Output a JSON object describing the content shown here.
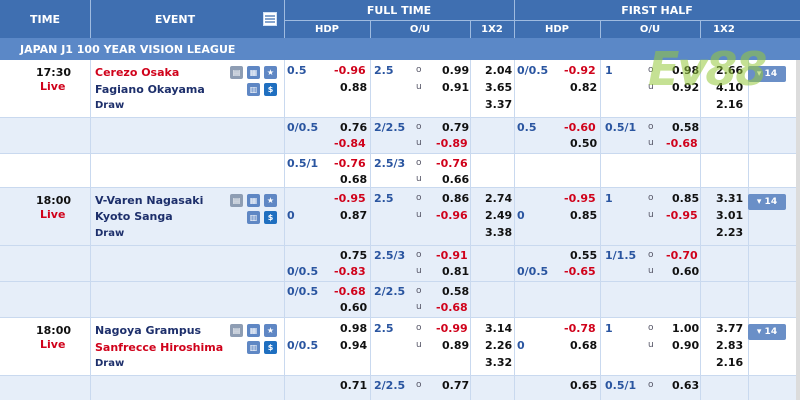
{
  "header": {
    "time": "TIME",
    "event": "EVENT",
    "full_time": "FULL TIME",
    "first_half": "FIRST HALF",
    "hdp": "HDP",
    "ou": "O/U",
    "x12": "1X2"
  },
  "league": "JAPAN J1 100 YEAR VISION LEAGUE",
  "watermark": "Ev88",
  "matches": [
    {
      "time": "17:30",
      "status": "Live",
      "home": "Cerezo Osaka",
      "away": "Fagiano Okayama",
      "draw": "Draw",
      "more": "▾ 14",
      "main": {
        "ft_hdp_line": "0.5",
        "ft_hdp_h": "-0.96",
        "ft_hdp_a": "0.88",
        "ft_ou_line": "2.5",
        "ft_ou_o": "0.99",
        "ft_ou_u": "0.91",
        "ft_1": "2.04",
        "ft_x": "3.65",
        "ft_2": "3.37",
        "fh_hdp_line": "0/0.5",
        "fh_hdp_h": "-0.92",
        "fh_hdp_a": "0.82",
        "fh_ou_line": "1",
        "fh_ou_o": "0.98",
        "fh_ou_u": "0.92",
        "fh_1": "2.66",
        "fh_x": "4.10",
        "fh_2": "2.16"
      },
      "alt": [
        {
          "ft_hdp_line": "0/0.5",
          "ft_hdp_h": "0.76",
          "ft_hdp_a": "-0.84",
          "ft_ou_line": "2/2.5",
          "ft_ou_o": "0.79",
          "ft_ou_u": "-0.89",
          "fh_hdp_line": "0.5",
          "fh_hdp_h": "-0.60",
          "fh_hdp_a": "0.50",
          "fh_ou_line": "0.5/1",
          "fh_ou_o": "0.58",
          "fh_ou_u": "-0.68"
        },
        {
          "ft_hdp_line": "0.5/1",
          "ft_hdp_h": "-0.76",
          "ft_hdp_a": "0.68",
          "ft_ou_line": "2.5/3",
          "ft_ou_o": "-0.76",
          "ft_ou_u": "0.66",
          "fh_hdp_line": "",
          "fh_hdp_h": "",
          "fh_hdp_a": "",
          "fh_ou_line": "",
          "fh_ou_o": "",
          "fh_ou_u": ""
        }
      ]
    },
    {
      "time": "18:00",
      "status": "Live",
      "home": "V-Varen Nagasaki",
      "away": "Kyoto Sanga",
      "draw": "Draw",
      "more": "▾ 14",
      "main": {
        "ft_hdp_line": "0",
        "ft_hdp_h": "-0.95",
        "ft_hdp_a": "0.87",
        "ft_ou_line": "2.5",
        "ft_ou_o": "0.86",
        "ft_ou_u": "-0.96",
        "ft_1": "2.74",
        "ft_x": "2.49",
        "ft_2": "3.38",
        "fh_hdp_line": "0",
        "fh_hdp_h": "-0.95",
        "fh_hdp_a": "0.85",
        "fh_ou_line": "1",
        "fh_ou_o": "0.85",
        "fh_ou_u": "-0.95",
        "fh_1": "3.31",
        "fh_x": "3.01",
        "fh_2": "2.23"
      },
      "alt": [
        {
          "ft_hdp_line": "0/0.5",
          "ft_hdp_h": "0.75",
          "ft_hdp_a": "-0.83",
          "ft_ou_line": "2.5/3",
          "ft_ou_o": "-0.91",
          "ft_ou_u": "0.81",
          "fh_hdp_line": "0/0.5",
          "fh_hdp_h": "0.55",
          "fh_hdp_a": "-0.65",
          "fh_ou_line": "1/1.5",
          "fh_ou_o": "-0.70",
          "fh_ou_u": "0.60"
        },
        {
          "ft_hdp_line": "0/0.5",
          "ft_hdp_h": "-0.68",
          "ft_hdp_a": "0.60",
          "ft_ou_line": "2/2.5",
          "ft_ou_o": "0.58",
          "ft_ou_u": "-0.68",
          "fh_hdp_line": "",
          "fh_hdp_h": "",
          "fh_hdp_a": "",
          "fh_ou_line": "",
          "fh_ou_o": "",
          "fh_ou_u": ""
        }
      ]
    },
    {
      "time": "18:00",
      "status": "Live",
      "home": "Nagoya Grampus",
      "away": "Sanfrecce Hiroshima",
      "draw": "Draw",
      "more": "▾ 14",
      "main": {
        "ft_hdp_line": "0/0.5",
        "ft_hdp_h": "0.98",
        "ft_hdp_a": "0.94",
        "ft_ou_line": "2.5",
        "ft_ou_o": "-0.99",
        "ft_ou_u": "0.89",
        "ft_1": "3.14",
        "ft_x": "2.26",
        "ft_2": "3.32",
        "fh_hdp_line": "0",
        "fh_hdp_h": "-0.78",
        "fh_hdp_a": "0.68",
        "fh_ou_line": "1",
        "fh_ou_o": "1.00",
        "fh_ou_u": "0.90",
        "fh_1": "3.77",
        "fh_x": "2.83",
        "fh_2": "2.16"
      },
      "alt": [
        {
          "ft_hdp_line": "",
          "ft_hdp_h": "0.71",
          "ft_hdp_a": "",
          "ft_ou_line": "2/2.5",
          "ft_ou_o": "0.77",
          "ft_ou_u": "",
          "fh_hdp_line": "",
          "fh_hdp_h": "0.65",
          "fh_hdp_a": "",
          "fh_ou_line": "0.5/1",
          "fh_ou_o": "0.63",
          "fh_ou_u": ""
        }
      ]
    }
  ],
  "ou_markers": {
    "over": "o",
    "under": "u"
  }
}
